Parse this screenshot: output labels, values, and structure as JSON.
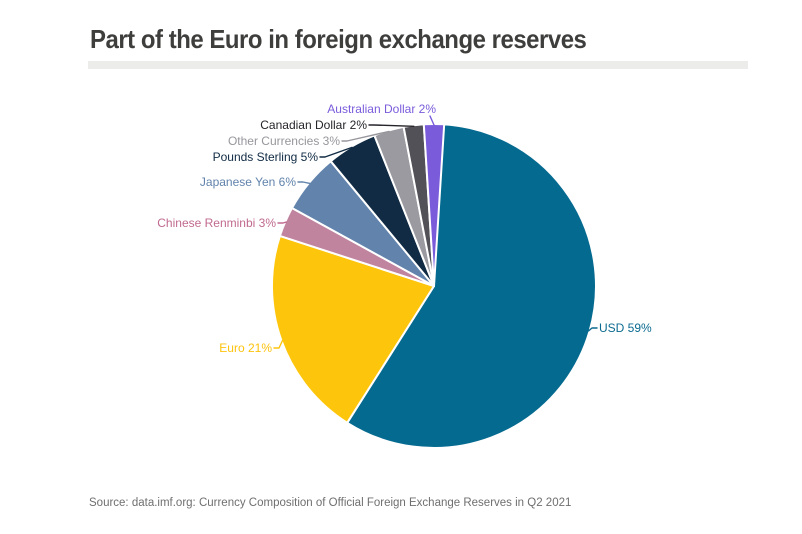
{
  "page": {
    "title": "Part of the Euro in foreign exchange reserves",
    "source_line": "Source: data.imf.org: Currency Composition of Official Foreign Exchange Reserves in Q2 2021"
  },
  "colors": {
    "background": "#FFFFFF",
    "title_text": "#3E3E3D",
    "divider_bar": "#ECECEA",
    "source_text": "#6F6F6F",
    "slice_separator": "#FFFFFF"
  },
  "chart_data": {
    "type": "pie",
    "title": "Part of the Euro in foreign exchange reserves",
    "unit": "%",
    "legend_position": "callout-labels",
    "start_angle": "12 o'clock, clockwise",
    "slices": [
      {
        "name": "USD",
        "value": 59,
        "label": "USD 59%",
        "color": "#056A90",
        "label_color": "#0B6A90"
      },
      {
        "name": "Euro",
        "value": 21,
        "label": "Euro 21%",
        "color": "#FDC60D",
        "label_color": "#FDC30D"
      },
      {
        "name": "Chinese Renminbi",
        "value": 3,
        "label": "Chinese Renminbi 3%",
        "color": "#C0849E",
        "label_color": "#C06A8F"
      },
      {
        "name": "Japanese Yen",
        "value": 6,
        "label": "Japanese Yen 6%",
        "color": "#6183AC",
        "label_color": "#6183AC"
      },
      {
        "name": "Pounds Sterling",
        "value": 5,
        "label": "Pounds Sterling 5%",
        "color": "#112B44",
        "label_color": "#112B44"
      },
      {
        "name": "Other Currencies",
        "value": 3,
        "label": "Other Currencies 3%",
        "color": "#9B9AA0",
        "label_color": "#97969C"
      },
      {
        "name": "Canadian Dollar",
        "value": 2,
        "label": "Canadian Dollar 2%",
        "color": "#535158",
        "label_color": "#26242A"
      },
      {
        "name": "Australian Dollar",
        "value": 2,
        "label": "Australian Dollar 2%",
        "color": "#7A5CDB",
        "label_color": "#7A5CDB"
      }
    ]
  }
}
